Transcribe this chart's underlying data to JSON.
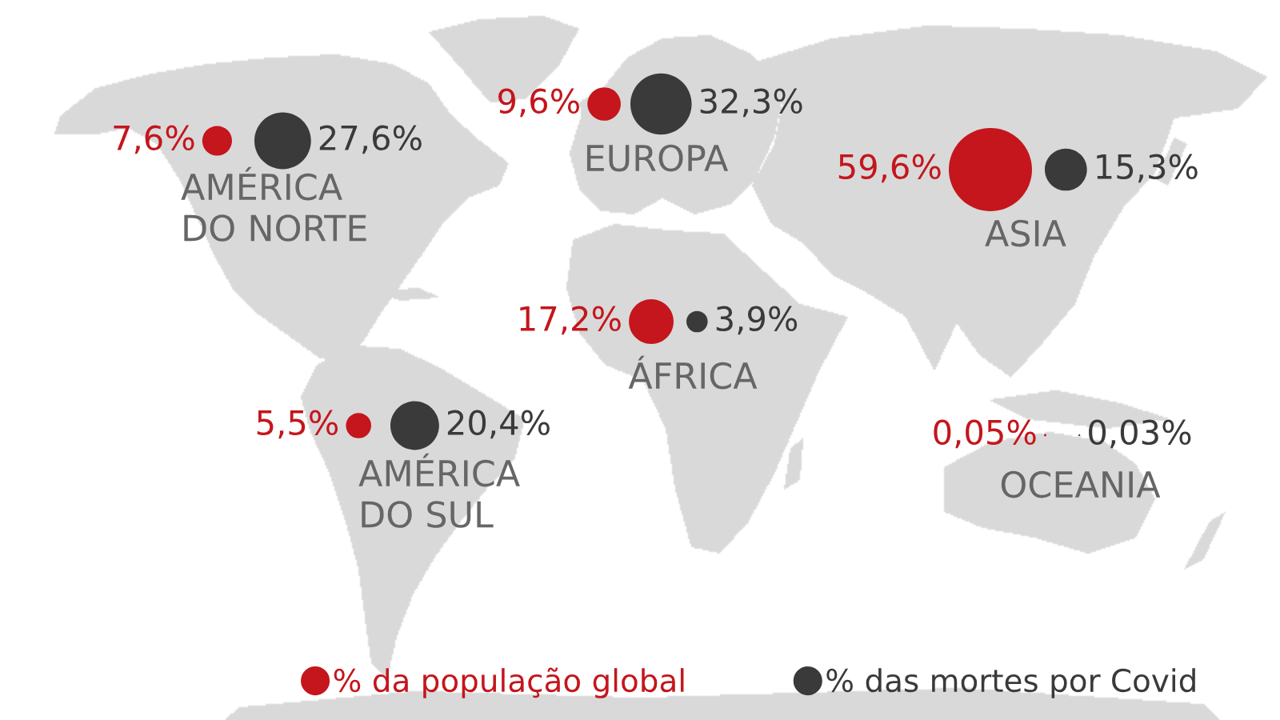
{
  "chart_data": {
    "type": "other",
    "categories": [
      "AMÉRICA\nDO NORTE",
      "EUROPA",
      "ASIA",
      "ÁFRICA",
      "AMÉRICA\nDO SUL",
      "OCEANIA"
    ],
    "legend": "bottom",
    "series": [
      {
        "name": "% da população global",
        "color": "#c4161c",
        "values": [
          7.6,
          9.6,
          59.6,
          17.2,
          5.5,
          0.05
        ],
        "value_labels": [
          "7,6%",
          "9,6%",
          "59,6%",
          "17,2%",
          "5,5%",
          "0,05%"
        ]
      },
      {
        "name": "% das mortes por Covid",
        "color": "#3a3a3a",
        "values": [
          27.6,
          32.3,
          15.3,
          3.9,
          20.4,
          0.03
        ],
        "value_labels": [
          "27,6%",
          "32,3%",
          "15,3%",
          "3,9%",
          "20,4%",
          "0,03%"
        ]
      }
    ]
  }
}
